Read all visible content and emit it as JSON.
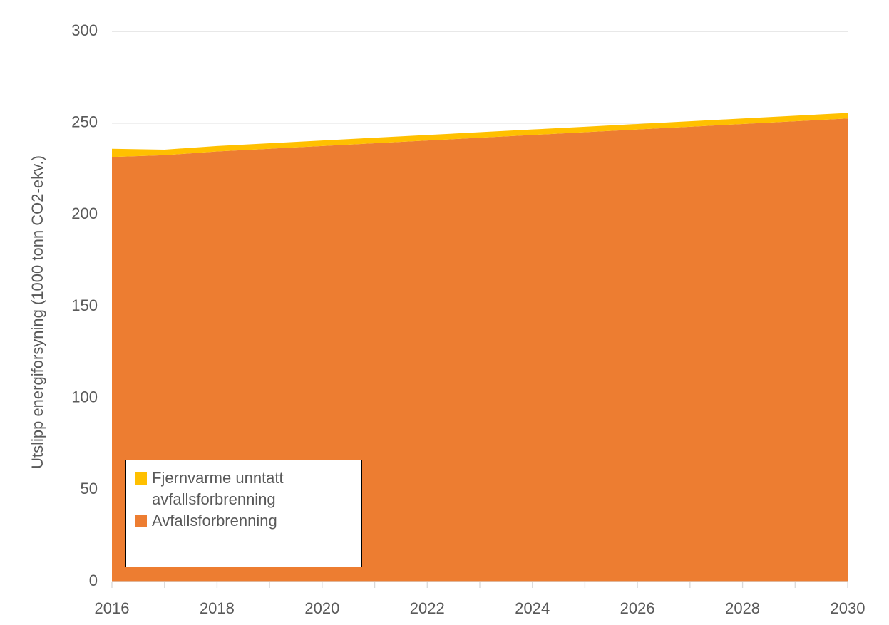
{
  "chart_data": {
    "type": "area",
    "stacked": true,
    "title": "",
    "xlabel": "",
    "ylabel": "Utslipp energiforsyning (1000 tonn CO2-ekv.)",
    "x": [
      2016,
      2017,
      2018,
      2019,
      2020,
      2021,
      2022,
      2023,
      2024,
      2025,
      2026,
      2027,
      2028,
      2029,
      2030
    ],
    "xlim": [
      2016,
      2030
    ],
    "xticks": [
      "2016",
      "2018",
      "2020",
      "2022",
      "2024",
      "2026",
      "2028",
      "2030"
    ],
    "ylim": [
      0,
      300
    ],
    "yticks": [
      "0",
      "50",
      "100",
      "150",
      "200",
      "250",
      "300"
    ],
    "grid": "horizontal",
    "legend_position": "bottom-left",
    "series": [
      {
        "name": "Avfallsforbrenning",
        "color": "#ED7D31",
        "values": [
          231.5,
          232.5,
          234.5,
          236,
          237.5,
          239,
          240.5,
          242,
          243.5,
          245,
          246.5,
          248,
          249.5,
          251,
          252.5
        ]
      },
      {
        "name": "Fjernvarme unntatt avfallsforbrenning",
        "color": "#FFC000",
        "values": [
          4.5,
          3,
          3,
          3,
          3,
          3,
          3,
          3,
          3,
          3,
          3,
          3,
          3,
          3,
          3
        ]
      }
    ]
  }
}
